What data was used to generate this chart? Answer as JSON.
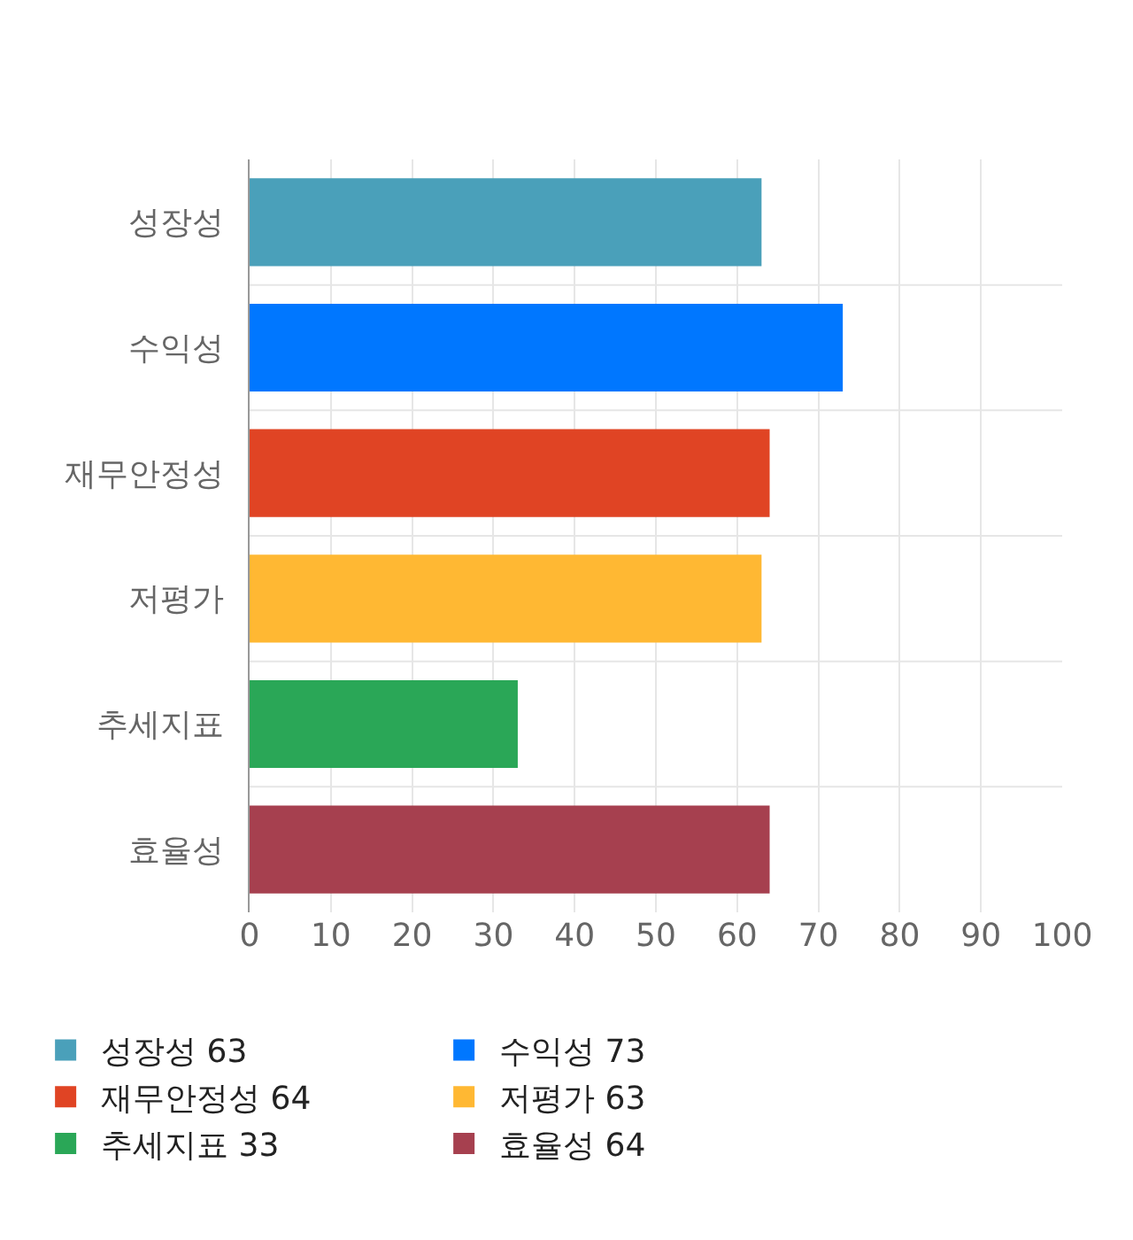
{
  "chart_data": {
    "type": "bar",
    "orientation": "horizontal",
    "categories": [
      "성장성",
      "수익성",
      "재무안정성",
      "저평가",
      "추세지표",
      "효율성"
    ],
    "series": [
      {
        "name": "성장성 63",
        "color": "#4aa0ba",
        "values": [
          63,
          null,
          null,
          null,
          null,
          null
        ]
      },
      {
        "name": "수익성 73",
        "color": "#0077ff",
        "values": [
          null,
          73,
          null,
          null,
          null,
          null
        ]
      },
      {
        "name": "재무안정성 64",
        "color": "#e04424",
        "values": [
          null,
          null,
          64,
          null,
          null,
          null
        ]
      },
      {
        "name": "저평가 63",
        "color": "#ffb833",
        "values": [
          null,
          null,
          null,
          63,
          null,
          null
        ]
      },
      {
        "name": "추세지표 33",
        "color": "#2aa757",
        "values": [
          null,
          null,
          null,
          null,
          33,
          null
        ]
      },
      {
        "name": "효율성 64",
        "color": "#a6404f",
        "values": [
          null,
          null,
          null,
          null,
          null,
          64
        ]
      }
    ],
    "xlim": [
      0,
      100
    ],
    "xticks": [
      0,
      10,
      20,
      30,
      40,
      50,
      60,
      70,
      80,
      90,
      100
    ],
    "grid": true,
    "legend": "bottom"
  }
}
